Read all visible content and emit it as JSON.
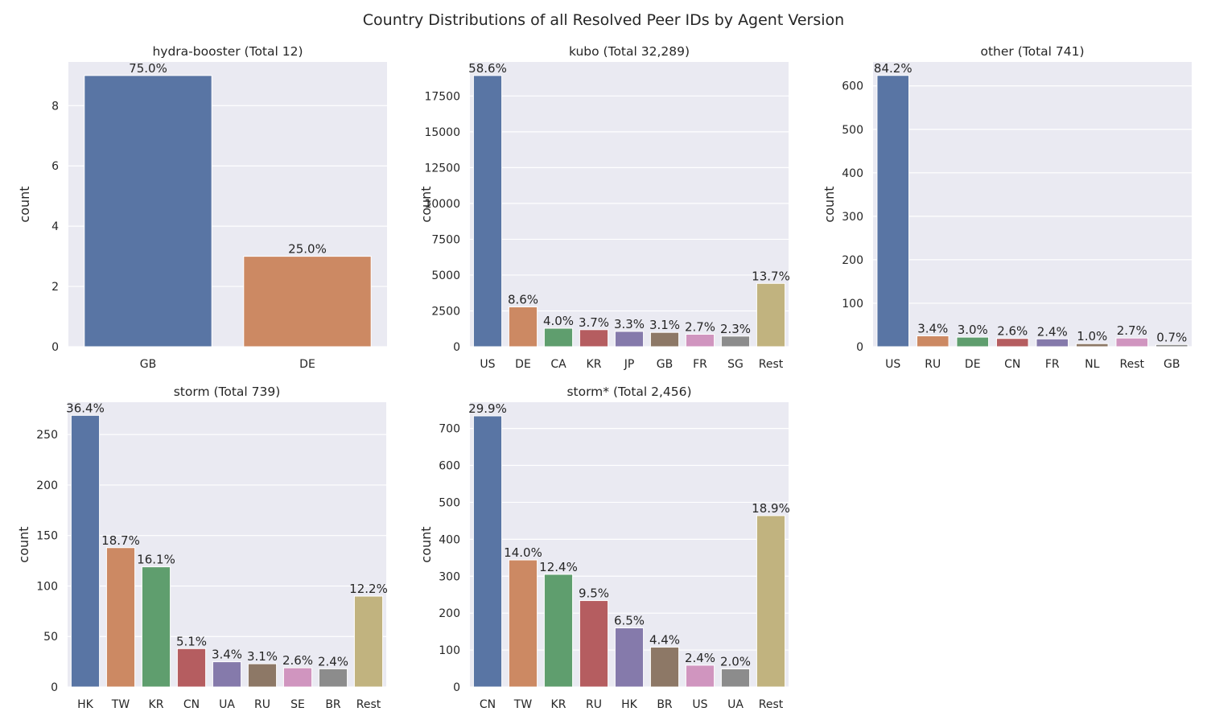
{
  "suptitle": "Country Distributions of all Resolved Peer IDs by Agent Version",
  "palette": [
    "#5975a4",
    "#cc8963",
    "#5f9e6e",
    "#b55d60",
    "#857aab",
    "#8d7866",
    "#d095bf",
    "#8c8c8c",
    "#c1b37f"
  ],
  "chart_data": [
    {
      "type": "bar",
      "title": "hydra-booster (Total 12)",
      "ylabel": "count",
      "xlabel": "",
      "categories": [
        "GB",
        "DE"
      ],
      "values": [
        9,
        3
      ],
      "labels": [
        "75.0%",
        "25.0%"
      ],
      "ylim": [
        0,
        9.45
      ],
      "yticks": [
        0,
        2,
        4,
        6,
        8
      ],
      "grid": true
    },
    {
      "type": "bar",
      "title": "kubo (Total 32,289)",
      "ylabel": "count",
      "xlabel": "",
      "categories": [
        "US",
        "DE",
        "CA",
        "KR",
        "JP",
        "GB",
        "FR",
        "SG",
        "Rest"
      ],
      "values": [
        18930,
        2780,
        1290,
        1190,
        1070,
        1000,
        870,
        740,
        4420
      ],
      "labels": [
        "58.6%",
        "8.6%",
        "4.0%",
        "3.7%",
        "3.3%",
        "3.1%",
        "2.7%",
        "2.3%",
        "13.7%"
      ],
      "ylim": [
        0,
        19877
      ],
      "yticks": [
        0,
        2500,
        5000,
        7500,
        10000,
        12500,
        15000,
        17500
      ],
      "grid": true
    },
    {
      "type": "bar",
      "title": "other (Total 741)",
      "ylabel": "count",
      "xlabel": "",
      "categories": [
        "US",
        "RU",
        "DE",
        "CN",
        "FR",
        "NL",
        "Rest",
        "GB"
      ],
      "values": [
        624,
        25,
        22,
        19,
        18,
        7,
        20,
        5
      ],
      "labels": [
        "84.2%",
        "3.4%",
        "3.0%",
        "2.6%",
        "2.4%",
        "1.0%",
        "2.7%",
        "0.7%"
      ],
      "ylim": [
        0,
        655
      ],
      "yticks": [
        0,
        100,
        200,
        300,
        400,
        500,
        600
      ],
      "grid": true
    },
    {
      "type": "bar",
      "title": "storm (Total 739)",
      "ylabel": "count",
      "xlabel": "",
      "categories": [
        "HK",
        "TW",
        "KR",
        "CN",
        "UA",
        "RU",
        "SE",
        "BR",
        "Rest"
      ],
      "values": [
        269,
        138,
        119,
        38,
        25,
        23,
        19,
        18,
        90
      ],
      "labels": [
        "36.4%",
        "18.7%",
        "16.1%",
        "5.1%",
        "3.4%",
        "3.1%",
        "2.6%",
        "2.4%",
        "12.2%"
      ],
      "ylim": [
        0,
        282
      ],
      "yticks": [
        0,
        50,
        100,
        150,
        200,
        250
      ],
      "grid": true
    },
    {
      "type": "bar",
      "title": "storm* (Total 2,456)",
      "ylabel": "count",
      "xlabel": "",
      "categories": [
        "CN",
        "TW",
        "KR",
        "RU",
        "HK",
        "BR",
        "US",
        "UA",
        "Rest"
      ],
      "values": [
        734,
        344,
        305,
        234,
        160,
        108,
        59,
        49,
        464
      ],
      "labels": [
        "29.9%",
        "14.0%",
        "12.4%",
        "9.5%",
        "6.5%",
        "4.4%",
        "2.4%",
        "2.0%",
        "18.9%"
      ],
      "ylim": [
        0,
        771
      ],
      "yticks": [
        0,
        100,
        200,
        300,
        400,
        500,
        600,
        700
      ],
      "grid": true
    }
  ]
}
